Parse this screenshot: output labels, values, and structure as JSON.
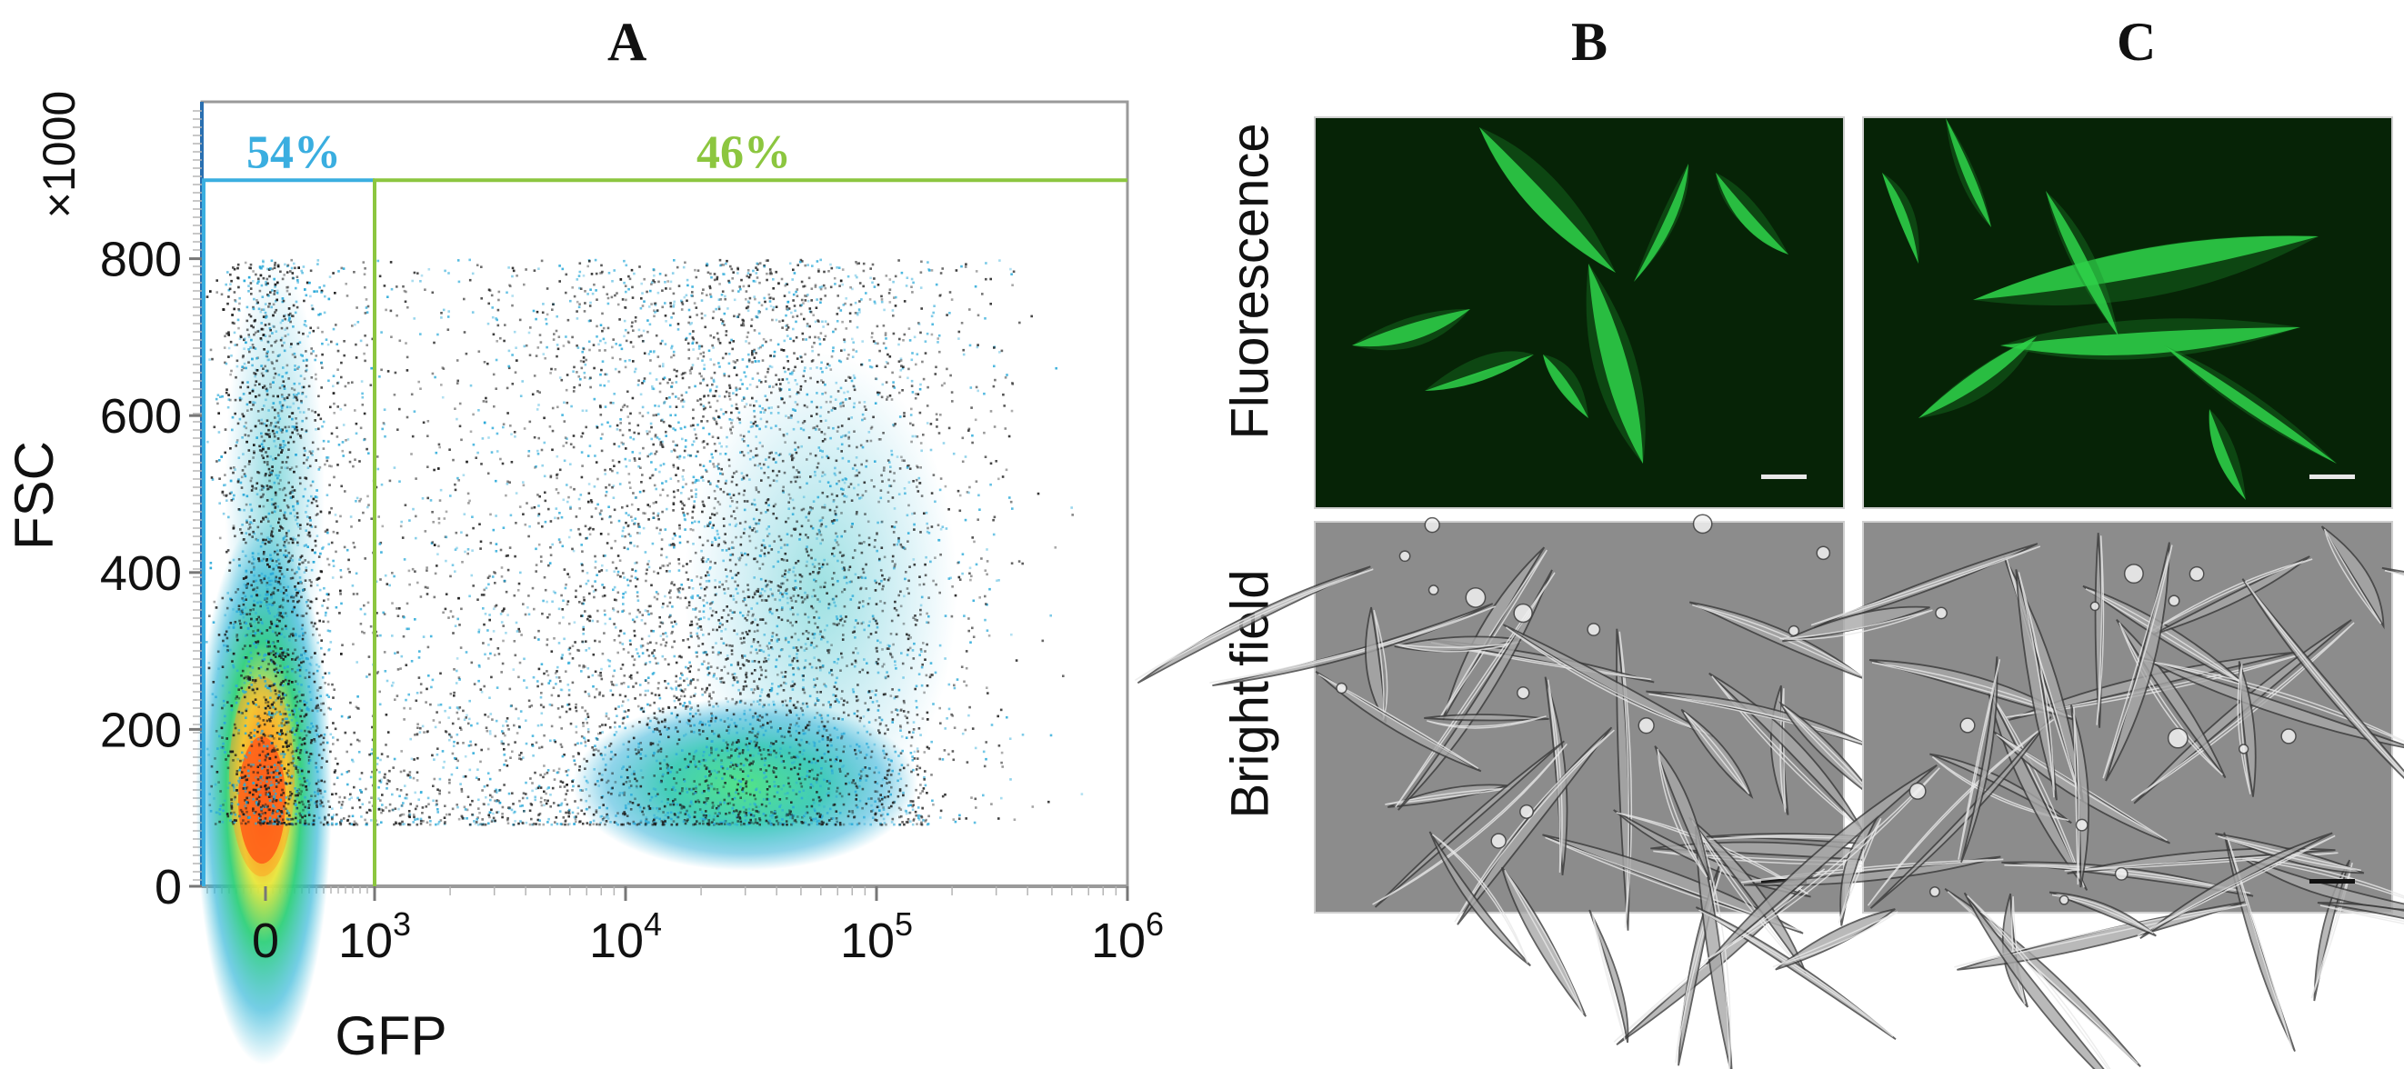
{
  "panels": {
    "a": {
      "letter": "A"
    },
    "b": {
      "letter": "B"
    },
    "c": {
      "letter": "C"
    }
  },
  "row_labels": {
    "fluorescence": "Fluorescence",
    "bright_field": "Bright field"
  },
  "chart_data": {
    "type": "scatter",
    "xlabel": "GFP",
    "ylabel": "FSC",
    "y_multiplier_label": "×1000",
    "x_scale": "log (with 0)",
    "x_ticks": [
      {
        "value": 0,
        "base": "0",
        "exp": ""
      },
      {
        "value": 1000,
        "base": "10",
        "exp": "3"
      },
      {
        "value": 10000,
        "base": "10",
        "exp": "4"
      },
      {
        "value": 100000,
        "base": "10",
        "exp": "5"
      },
      {
        "value": 1000000,
        "base": "10",
        "exp": "6"
      }
    ],
    "y_ticks": [
      "0",
      "200",
      "400",
      "600",
      "800"
    ],
    "ylim": [
      0,
      1000
    ],
    "gates": [
      {
        "label": "54%",
        "fraction": 0.54,
        "x_range": [
          0,
          1000
        ],
        "color": "#3aaee0"
      },
      {
        "label": "46%",
        "fraction": 0.46,
        "x_range": [
          1000,
          1000000
        ],
        "color": "#8cc63f"
      }
    ],
    "gate_top_y": 900,
    "populations": [
      {
        "name": "",
        "center_gfp": 0,
        "center_fsc": 120
      },
      {
        "name": "",
        "center_gfp": 30000,
        "center_fsc": 150
      }
    ]
  },
  "colors": {
    "axis": "#9a9a9a",
    "gfp_negative_gate": "#3aaee0",
    "gfp_positive_gate": "#8cc63f",
    "fluorescence_bg": "#062306",
    "fluorescence_cell": "#2fd24a",
    "bright_field_bg": "#8c8c8c"
  },
  "scale_bar_icons": [
    "scale-bar-icon"
  ]
}
